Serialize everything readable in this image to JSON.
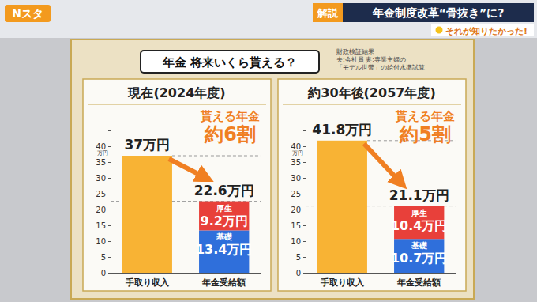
{
  "header": {
    "logo": "Nスタ",
    "tag": "解説",
    "headline": "年金制度改革“骨抜き”に?",
    "sub": "それが知りたかった!",
    "title": "年金 将来いくら貰える？",
    "note": [
      "財政検証結果",
      "夫:会社員 妻:専業主婦の",
      "「モデル世帯」の給付水準試算"
    ]
  },
  "chart_data": [
    {
      "type": "bar",
      "title": "現在(2024年度)",
      "stacked": true,
      "data_labels": true,
      "grid": false,
      "categories": [
        "手取り収入",
        "年金受給額"
      ],
      "series": [
        {
          "color": "#f8b334",
          "values": [
            37,
            null
          ],
          "value_labels": [
            "37万円",
            null
          ]
        },
        {
          "name": "基礎",
          "color": "#2f6fdb",
          "values": [
            null,
            13.4
          ],
          "value_labels": [
            null,
            "13.4万円"
          ]
        },
        {
          "name": "厚生",
          "color": "#e8403a",
          "values": [
            null,
            9.2
          ],
          "value_labels": [
            null,
            "9.2万円"
          ]
        }
      ],
      "totals": [
        null,
        22.6
      ],
      "total_labels": [
        null,
        "22.6万円"
      ],
      "annotation": [
        "貰える年金",
        "約6割"
      ],
      "ylabel": "万円",
      "ylim": [
        0,
        45
      ],
      "yticks": [
        0,
        5,
        10,
        15,
        20,
        25,
        30,
        35,
        40
      ]
    },
    {
      "type": "bar",
      "title": "約30年後(2057年度)",
      "stacked": true,
      "data_labels": true,
      "grid": false,
      "categories": [
        "手取り収入",
        "年金受給額"
      ],
      "series": [
        {
          "color": "#f8b334",
          "values": [
            41.8,
            null
          ],
          "value_labels": [
            "41.8万円",
            null
          ]
        },
        {
          "name": "基礎",
          "color": "#2f6fdb",
          "values": [
            null,
            10.7
          ],
          "value_labels": [
            null,
            "10.7万円"
          ]
        },
        {
          "name": "厚生",
          "color": "#e8403a",
          "values": [
            null,
            10.4
          ],
          "value_labels": [
            null,
            "10.4万円"
          ]
        }
      ],
      "totals": [
        null,
        21.1
      ],
      "total_labels": [
        null,
        "21.1万円"
      ],
      "annotation": [
        "貰える年金",
        "約5割"
      ],
      "ylabel": "万円",
      "ylim": [
        0,
        45
      ],
      "yticks": [
        0,
        5,
        10,
        15,
        20,
        25,
        30,
        35,
        40
      ]
    }
  ]
}
